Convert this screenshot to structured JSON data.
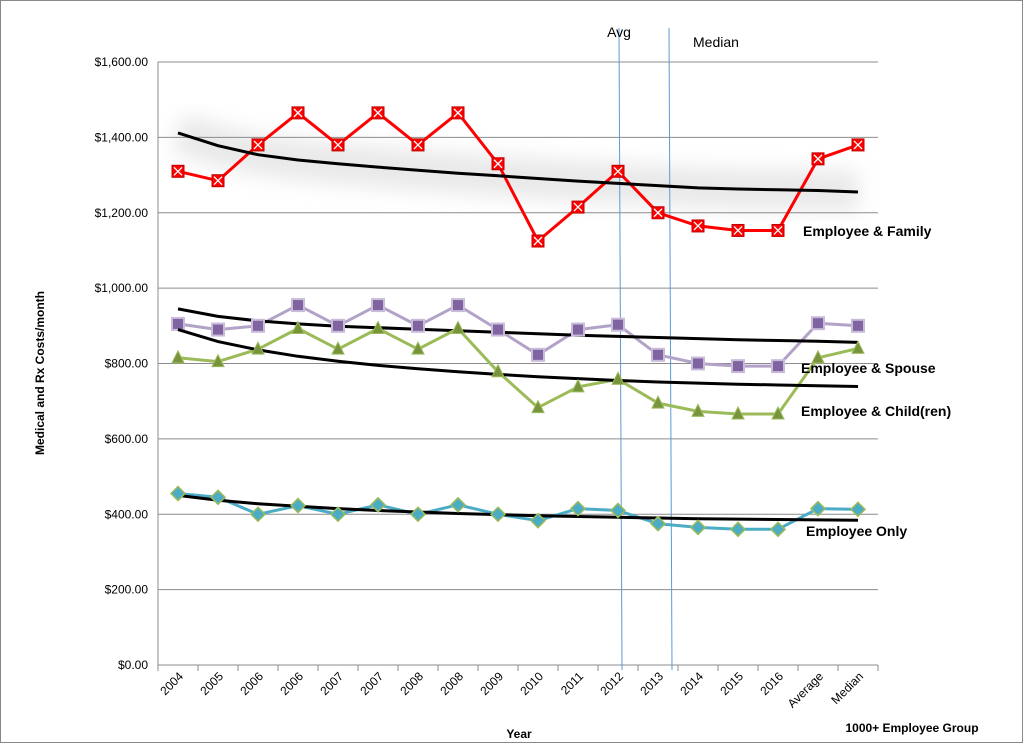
{
  "chart_data": {
    "type": "line",
    "ylabel": "Medical and Rx  Costs/month",
    "xlabel": "Year",
    "corner_label": "1000+ Employee Group",
    "ylim": [
      0,
      1600
    ],
    "y_ticks": [
      0,
      200,
      400,
      600,
      800,
      1000,
      1200,
      1400,
      1600
    ],
    "y_tick_labels": [
      "$0.00",
      "$200.00",
      "$400.00",
      "$600.00",
      "$800.00",
      "$1,000.00",
      "$1,200.00",
      "$1,400.00",
      "$1,600.00"
    ],
    "grid": true,
    "categories": [
      "2004",
      "2005",
      "2006",
      "2006",
      "2007",
      "2007",
      "2008",
      "2008",
      "2009",
      "2010",
      "2011",
      "2012",
      "2013",
      "2014",
      "2015",
      "2016",
      "Average",
      "Median"
    ],
    "series": [
      {
        "name": "Employee & Family",
        "color": "#ff0000",
        "marker": "square-x",
        "values": [
          1310,
          1285,
          1380,
          1465,
          1380,
          1465,
          1380,
          1465,
          1330,
          1125,
          1215,
          1310,
          1200,
          1165,
          1153,
          1153,
          1343,
          1380
        ],
        "trend": [
          1412,
          1378,
          1354,
          1340,
          1330,
          1321,
          1313,
          1305,
          1298,
          1291,
          1284,
          1278,
          1272,
          1266,
          1263,
          1261,
          1259,
          1255
        ]
      },
      {
        "name": "Employee & Spouse",
        "color": "#b3a2c7",
        "marker": "square",
        "values": [
          905,
          890,
          900,
          955,
          900,
          955,
          900,
          955,
          890,
          823,
          890,
          903,
          823,
          800,
          793,
          793,
          907,
          900
        ],
        "trend": [
          945,
          925,
          913,
          905,
          899,
          895,
          891,
          887,
          883,
          879,
          875,
          872,
          869,
          866,
          863,
          861,
          859,
          856
        ]
      },
      {
        "name": "Employee & Child(ren)",
        "color": "#9bbb59",
        "marker": "triangle",
        "values": [
          815,
          805,
          838,
          893,
          838,
          893,
          838,
          893,
          778,
          683,
          738,
          758,
          695,
          673,
          666,
          666,
          815,
          840
        ],
        "trend": [
          890,
          858,
          836,
          819,
          806,
          795,
          786,
          778,
          771,
          765,
          760,
          755,
          751,
          748,
          745,
          743,
          741,
          739
        ]
      },
      {
        "name": "Employee Only",
        "color": "#4bacc6",
        "marker": "diamond",
        "values": [
          455,
          445,
          400,
          423,
          400,
          425,
          400,
          425,
          400,
          383,
          415,
          410,
          375,
          365,
          360,
          360,
          415,
          413
        ],
        "trend": [
          450,
          437,
          428,
          421,
          415,
          410,
          406,
          402,
          399,
          396,
          394,
          392,
          390,
          388,
          387,
          386,
          385,
          384
        ]
      }
    ],
    "vertical_lines": [
      {
        "label": "Avg",
        "position": 11.1
      },
      {
        "label": "Median",
        "position": 12.35
      }
    ]
  }
}
